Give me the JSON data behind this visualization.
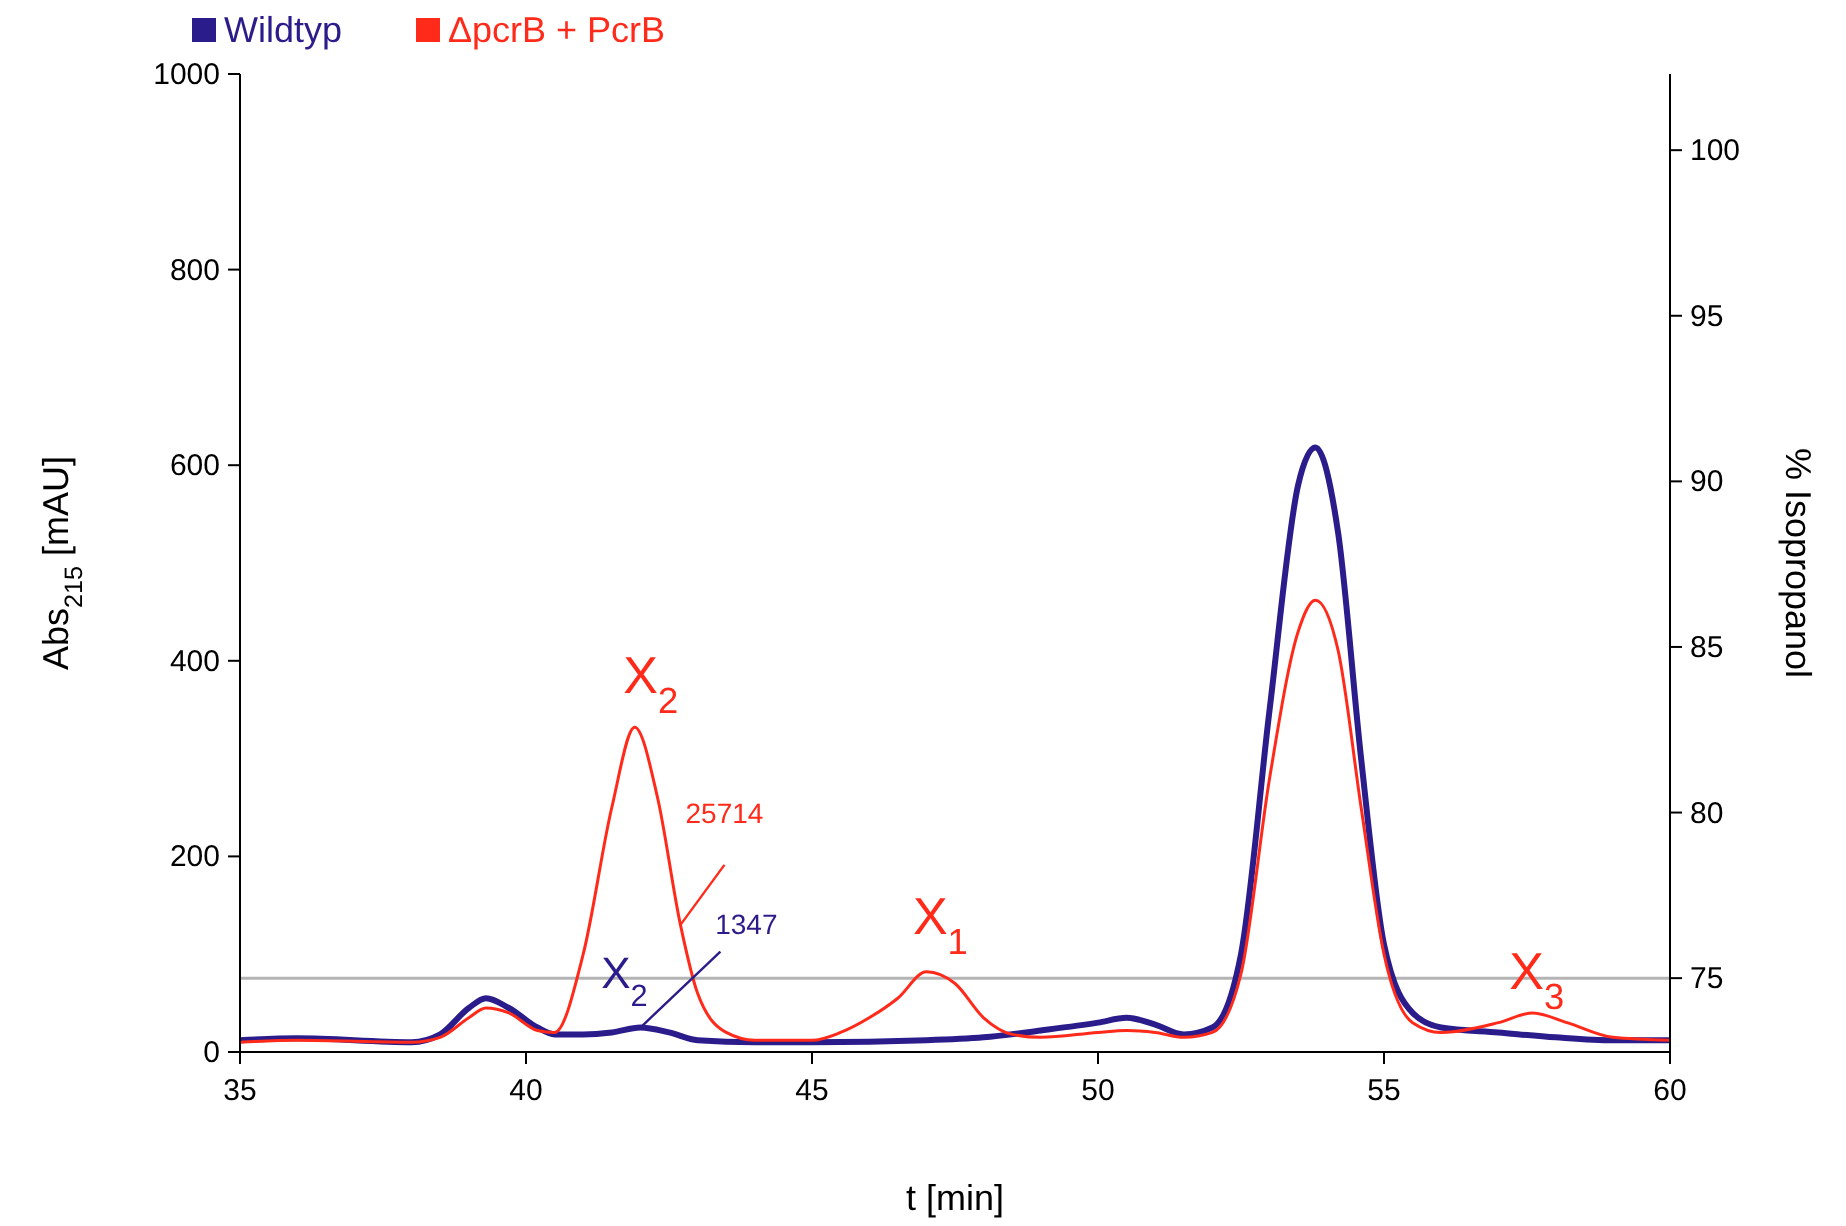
{
  "chart_data": {
    "type": "line",
    "legend": "top left",
    "xlabel": "t [min]",
    "ylabel": "Abs$_{215}$ [mAU]",
    "y2label": "% Isopropanol",
    "xlim": [
      35,
      60
    ],
    "xticks": [
      35,
      40,
      45,
      50,
      55,
      60
    ],
    "ylim": [
      0,
      1000
    ],
    "yticks": [
      0,
      200,
      400,
      600,
      800,
      1000
    ],
    "y2lim": [
      72.77,
      102.3
    ],
    "y2ticks": [
      75,
      80,
      85,
      90,
      95,
      100
    ],
    "series": [
      {
        "name": "ΔpcrB + PcrB",
        "color": "#ff2a1a",
        "x": [
          35,
          36,
          38,
          38.5,
          39,
          39.3,
          39.7,
          40.2,
          40.5,
          41,
          41.5,
          41.9,
          42.3,
          42.7,
          43,
          43.5,
          44,
          45,
          45.5,
          46,
          46.5,
          47,
          47.5,
          48,
          48.5,
          49,
          50,
          50.5,
          51,
          51.5,
          52,
          52.5,
          53,
          53.5,
          53.8,
          54.2,
          54.6,
          55,
          55.5,
          56,
          57,
          57.6,
          58.2,
          59,
          60
        ],
        "values": [
          10,
          12,
          10,
          15,
          35,
          45,
          40,
          22,
          20,
          100,
          250,
          332,
          260,
          130,
          60,
          20,
          12,
          12,
          20,
          35,
          55,
          82,
          70,
          35,
          18,
          15,
          20,
          22,
          20,
          15,
          20,
          80,
          280,
          430,
          462,
          410,
          250,
          100,
          30,
          20,
          30,
          40,
          30,
          15,
          12
        ]
      },
      {
        "name": "Wildtyp",
        "color": "#2b1c8c",
        "x": [
          35,
          36,
          38,
          38.5,
          39,
          39.3,
          39.7,
          40.2,
          40.5,
          41,
          41.5,
          42,
          42.5,
          43,
          44,
          45,
          47,
          48,
          49,
          50,
          50.5,
          51,
          51.5,
          52,
          52.5,
          53,
          53.5,
          53.8,
          54.2,
          54.6,
          55,
          55.5,
          56,
          57,
          58,
          59,
          60
        ],
        "values": [
          12,
          14,
          10,
          18,
          45,
          55,
          45,
          25,
          18,
          18,
          20,
          25,
          20,
          12,
          10,
          10,
          12,
          15,
          22,
          30,
          35,
          28,
          18,
          25,
          100,
          350,
          580,
          618,
          530,
          300,
          110,
          40,
          25,
          20,
          15,
          12,
          12
        ]
      },
      {
        "color": "#b4b4b4",
        "axis": "y2",
        "x": [
          35,
          60
        ],
        "values": [
          75,
          75
        ]
      }
    ],
    "annotations": [
      {
        "text": "X$_{2}$",
        "x": 41.9,
        "y": 332
      },
      {
        "text": "25714",
        "x": 42.7,
        "y": 130
      },
      {
        "text": "X$_{1}$",
        "x": 47,
        "y": 82
      },
      {
        "text": "X$_{3}$",
        "x": 57.6,
        "y": 40
      },
      {
        "text": "X$_{2}$",
        "x": 42,
        "y": 25
      },
      {
        "text": "1347",
        "x": 42,
        "y": 25
      }
    ]
  }
}
